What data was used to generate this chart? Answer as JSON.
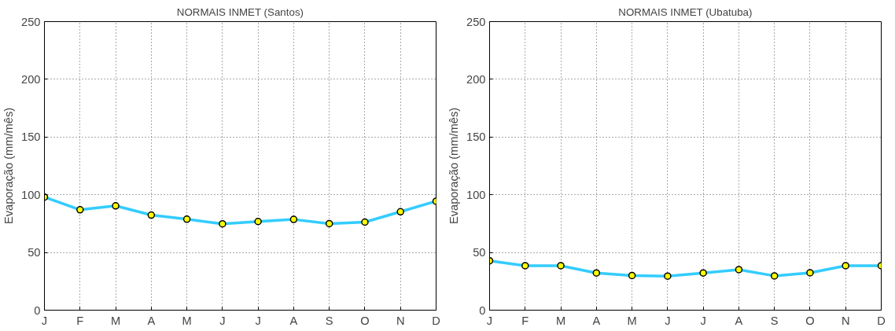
{
  "chart_data": [
    {
      "type": "line",
      "title": "NORMAIS INMET (Santos)",
      "ylabel": "Evaporação (mm/mês)",
      "categories": [
        "J",
        "F",
        "M",
        "A",
        "M",
        "J",
        "J",
        "A",
        "S",
        "O",
        "N",
        "D"
      ],
      "series": [
        {
          "color": "#33ccff",
          "values": [
            98,
            87,
            90.4,
            82.4,
            78.8,
            74.8,
            76.8,
            78.6,
            75,
            76.3,
            85.3,
            94.4
          ]
        }
      ],
      "ylim": [
        0,
        250
      ],
      "yticks": [
        0,
        50,
        100,
        150,
        200,
        250
      ],
      "grid": true,
      "marker": "circle",
      "line_style": "solid"
    },
    {
      "type": "line",
      "title": "NORMAIS INMET (Ubatuba)",
      "ylabel": "Evaporação (mm/mês)",
      "categories": [
        "J",
        "F",
        "M",
        "A",
        "M",
        "J",
        "J",
        "A",
        "S",
        "O",
        "N",
        "D"
      ],
      "series": [
        {
          "color": "#33ccff",
          "values": [
            42.8,
            38.5,
            38.5,
            32.2,
            30,
            29.5,
            32.2,
            35.1,
            29.7,
            32.4,
            38.5,
            38.5
          ]
        }
      ],
      "ylim": [
        0,
        250
      ],
      "yticks": [
        0,
        50,
        100,
        150,
        200,
        250
      ],
      "grid": true,
      "marker": "circle",
      "line_style": "solid"
    }
  ]
}
